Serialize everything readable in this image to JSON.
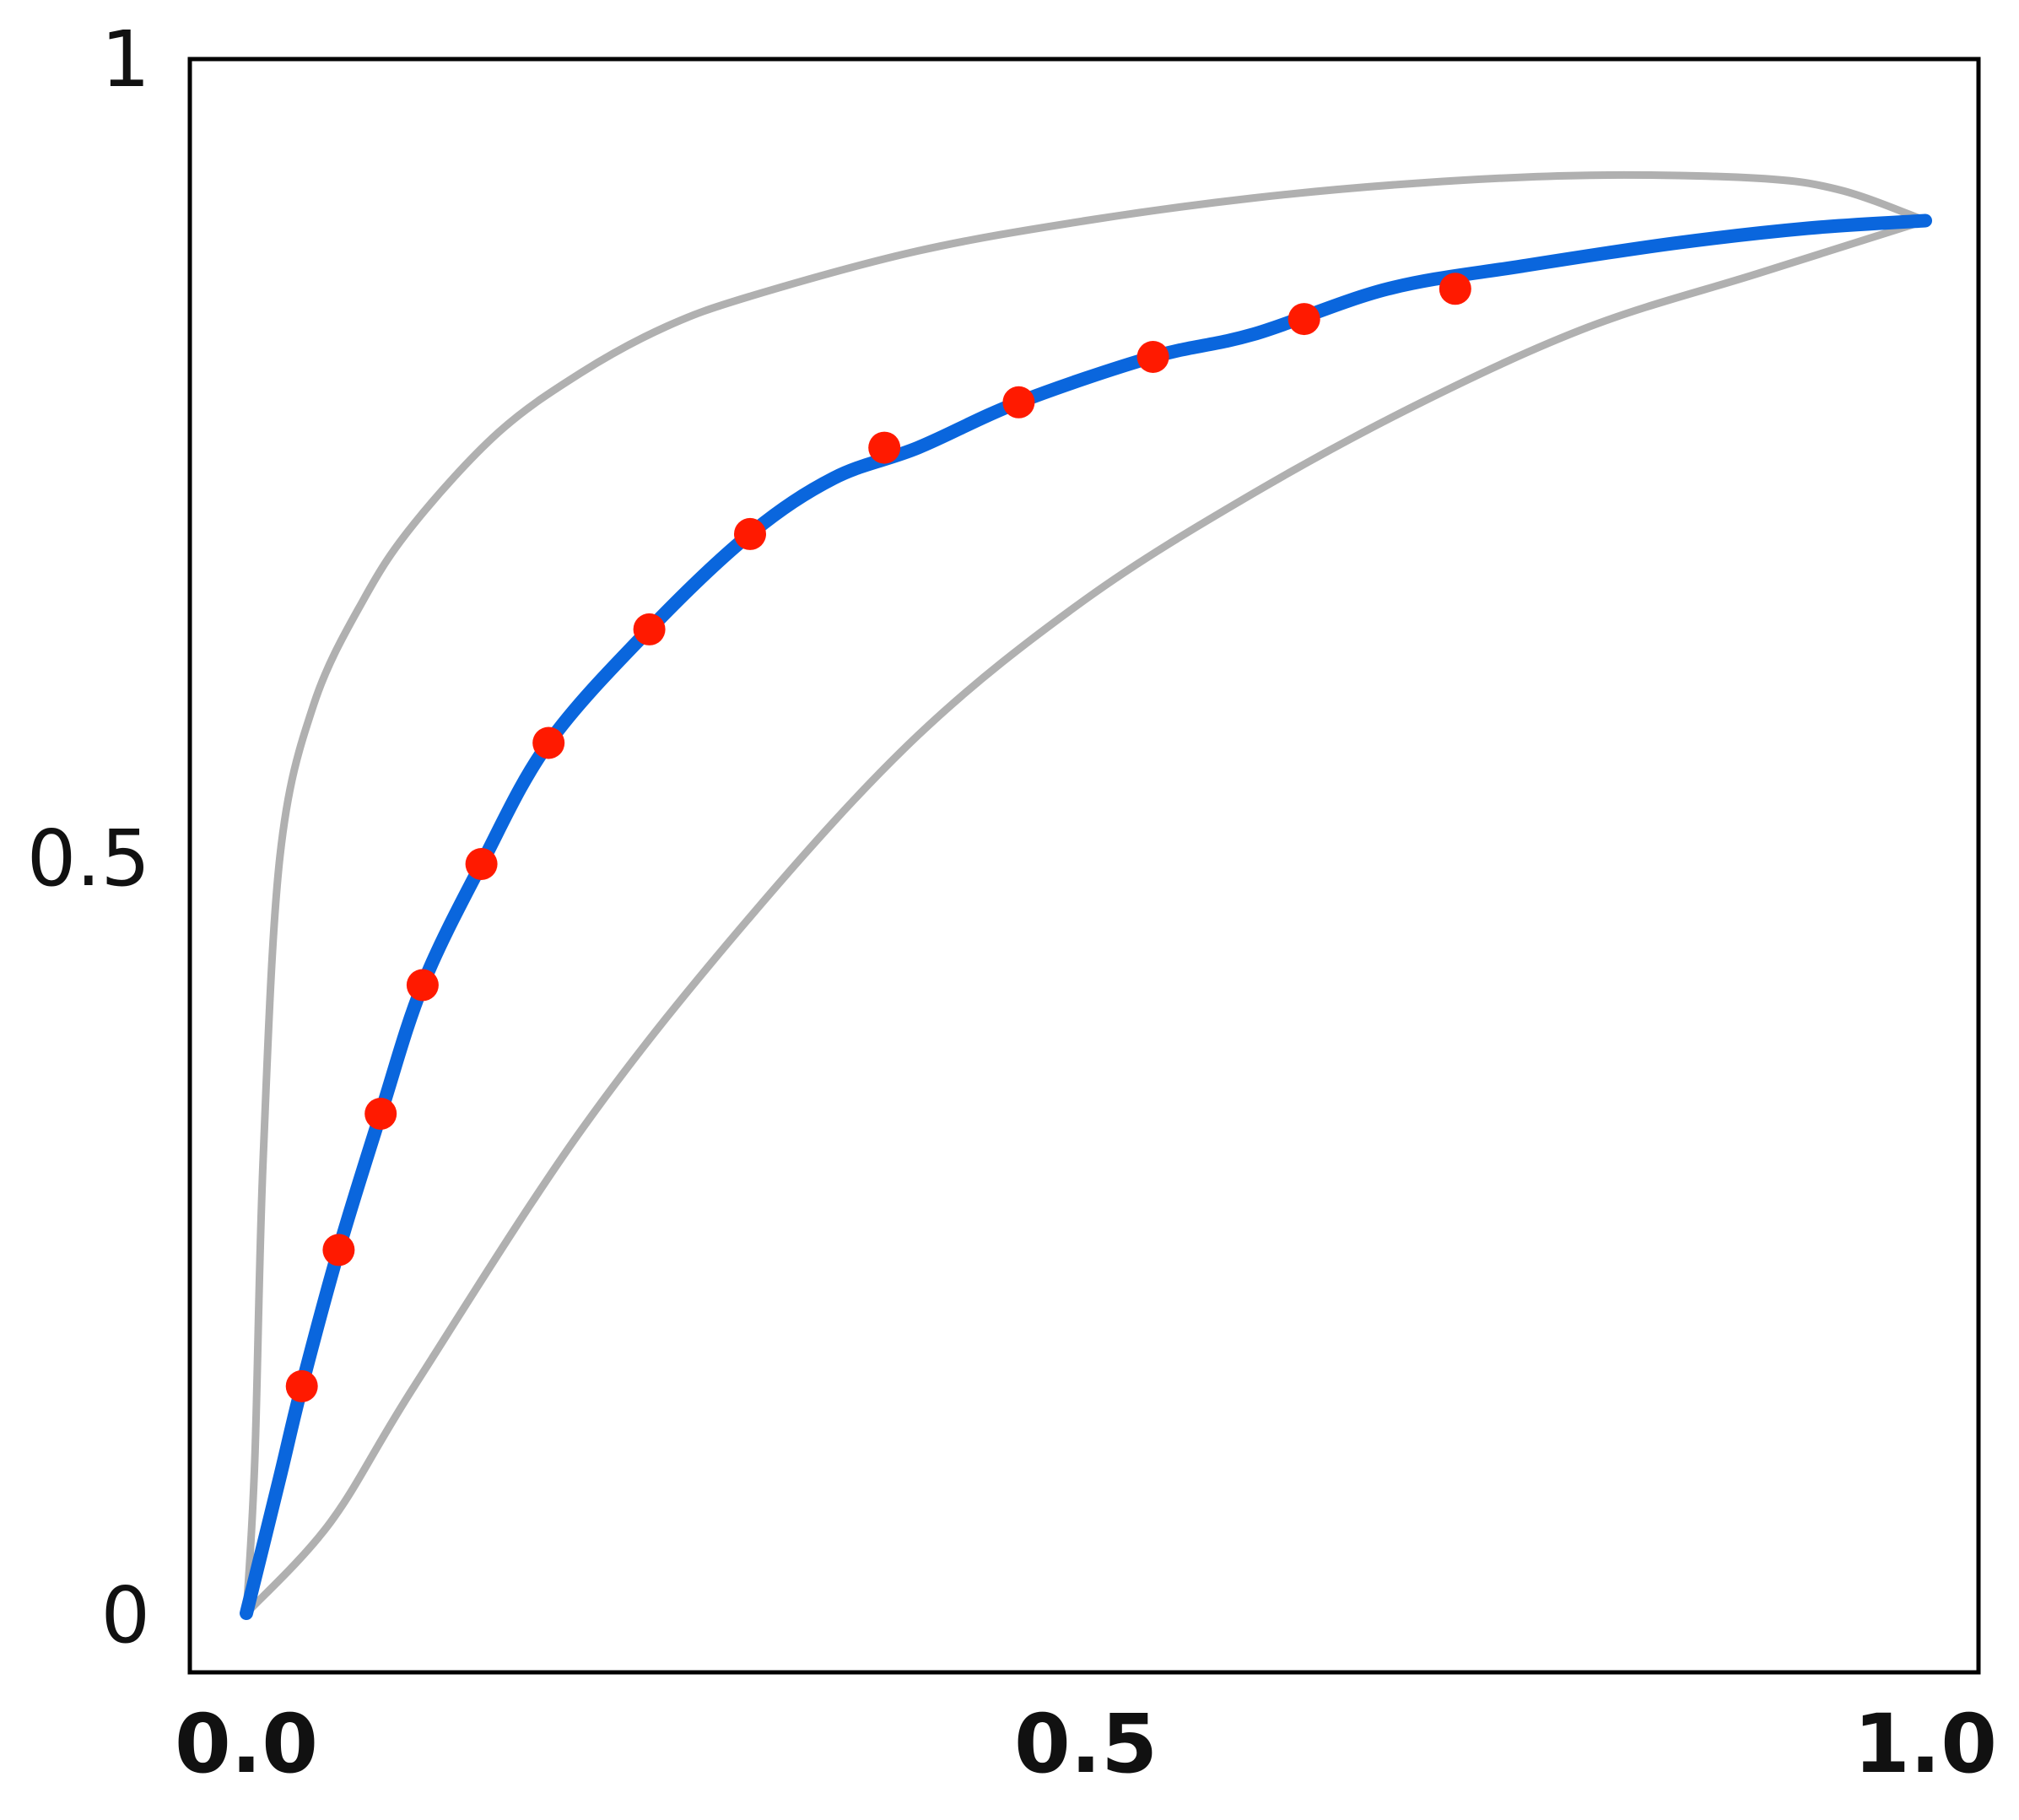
{
  "chart_data": {
    "type": "line",
    "title": "",
    "xlabel": "",
    "ylabel": "",
    "xlim": [
      0.0,
      1.0
    ],
    "ylim": [
      0,
      1
    ],
    "x_ticks": [
      {
        "value": 0.0,
        "label": "0.0"
      },
      {
        "value": 0.5,
        "label": "0.5"
      },
      {
        "value": 1.0,
        "label": "1.0"
      }
    ],
    "y_ticks": [
      {
        "value": 0,
        "label": "0"
      },
      {
        "value": 0.5,
        "label": "0.5"
      },
      {
        "value": 1,
        "label": "1"
      }
    ],
    "grid": false,
    "legend": "none",
    "colors": {
      "main_curve": "#0a66dd",
      "markers": "#ff1a00",
      "band": "#b0b0b0",
      "frame": "#000000"
    },
    "series": [
      {
        "role": "upper-band",
        "x": [
          0.0,
          0.005,
          0.01,
          0.02,
          0.04,
          0.07,
          0.1,
          0.15,
          0.2,
          0.25,
          0.3,
          0.4,
          0.5,
          0.6,
          0.7,
          0.8,
          0.9,
          0.95,
          1.0
        ],
        "y": [
          0.0,
          0.1,
          0.3,
          0.5,
          0.6,
          0.67,
          0.72,
          0.78,
          0.82,
          0.85,
          0.87,
          0.9,
          0.92,
          0.935,
          0.945,
          0.95,
          0.948,
          0.94,
          0.92
        ]
      },
      {
        "role": "lower-band",
        "x": [
          0.0,
          0.05,
          0.1,
          0.2,
          0.3,
          0.4,
          0.5,
          0.6,
          0.7,
          0.8,
          0.9,
          1.0
        ],
        "y": [
          0.0,
          0.06,
          0.15,
          0.32,
          0.46,
          0.58,
          0.67,
          0.74,
          0.8,
          0.85,
          0.885,
          0.92
        ]
      },
      {
        "role": "main-curve",
        "x": [
          0.0,
          0.02,
          0.033,
          0.055,
          0.08,
          0.105,
          0.14,
          0.18,
          0.24,
          0.3,
          0.35,
          0.4,
          0.46,
          0.54,
          0.6,
          0.68,
          0.76,
          0.85,
          0.93,
          1.0
        ],
        "y": [
          0.0,
          0.09,
          0.15,
          0.24,
          0.33,
          0.415,
          0.495,
          0.575,
          0.65,
          0.713,
          0.75,
          0.77,
          0.8,
          0.83,
          0.845,
          0.875,
          0.89,
          0.905,
          0.915,
          0.92
        ]
      }
    ],
    "markers": {
      "x": [
        0.033,
        0.055,
        0.08,
        0.105,
        0.14,
        0.18,
        0.24,
        0.3,
        0.38,
        0.46,
        0.54,
        0.63,
        0.72
      ],
      "y": [
        0.15,
        0.24,
        0.33,
        0.415,
        0.495,
        0.575,
        0.65,
        0.713,
        0.77,
        0.8,
        0.83,
        0.855,
        0.875
      ]
    }
  }
}
